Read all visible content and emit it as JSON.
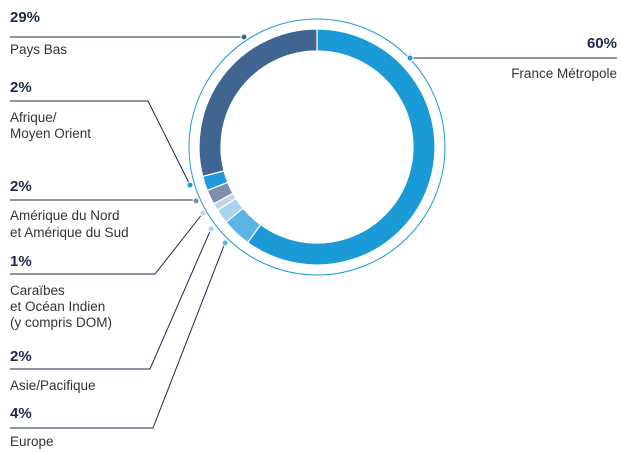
{
  "chart_data": {
    "type": "donut",
    "categories": [
      "France Métropole",
      "Europe",
      "Asie/Pacifique",
      "Caraïbes\net Océan Indien\n(y compris DOM)",
      "Amérique du Nord\net Amérique du Sud",
      "Afrique/\nMoyen Orient",
      "Pays Bas"
    ],
    "values": [
      60,
      4,
      2,
      1,
      2,
      2,
      29
    ],
    "value_labels": [
      "60%",
      "4%",
      "2%",
      "1%",
      "2%",
      "2%",
      "29%"
    ],
    "colors": [
      "#1a9ad6",
      "#5ab4e5",
      "#a9d3ee",
      "#c8d3e0",
      "#7d8fae",
      "#1f9ad6",
      "#3f6590"
    ]
  }
}
